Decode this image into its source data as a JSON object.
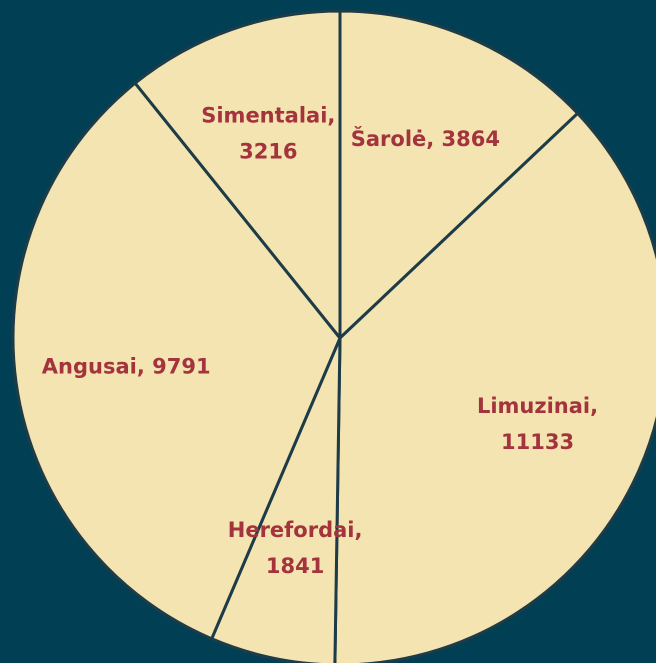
{
  "chart_data": {
    "type": "pie",
    "values": [
      3864,
      11133,
      1841,
      9791,
      3216
    ],
    "value_labels": [
      [
        "Šarolė, 3864"
      ],
      [
        "Limuzinai,",
        "11133"
      ],
      [
        "Herefordai,",
        "1841"
      ],
      [
        "Angusai, 9791"
      ],
      [
        "Simentalai,",
        "3216"
      ]
    ],
    "color": "#f3e4b1"
  }
}
